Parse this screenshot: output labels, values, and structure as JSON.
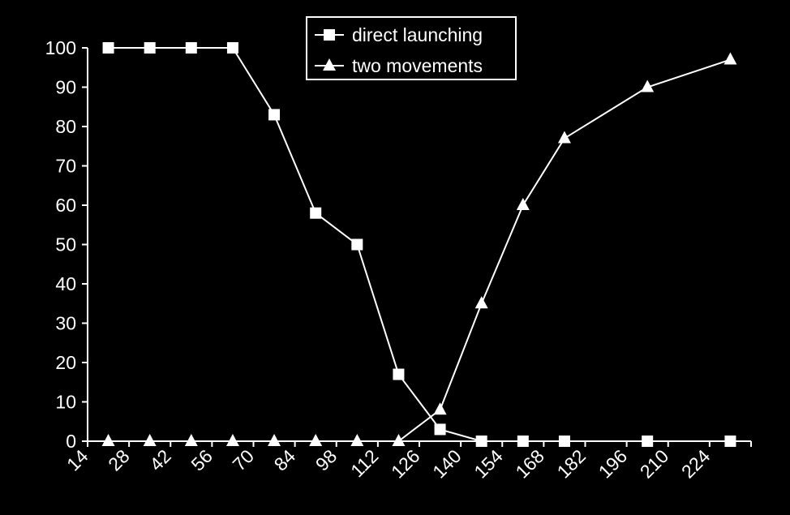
{
  "chart_data": {
    "type": "line",
    "x_ticks": [
      14,
      28,
      42,
      56,
      70,
      84,
      98,
      112,
      126,
      140,
      154,
      168,
      182,
      196,
      210,
      224
    ],
    "y_ticks": [
      0,
      10,
      20,
      30,
      40,
      50,
      60,
      70,
      80,
      90,
      100
    ],
    "xlim": [
      14,
      238
    ],
    "ylim": [
      0,
      100
    ],
    "legend_position": "top-center",
    "grid": false,
    "background": "#000000",
    "foreground": "#ffffff",
    "series": [
      {
        "name": "direct launching",
        "marker": "square",
        "x": [
          21,
          35,
          49,
          63,
          77,
          91,
          105,
          119,
          133,
          147,
          161,
          175,
          203,
          231
        ],
        "y": [
          100,
          100,
          100,
          100,
          83,
          58,
          50,
          17,
          3,
          0,
          0,
          0,
          0,
          0
        ]
      },
      {
        "name": "two movements",
        "marker": "triangle",
        "x": [
          21,
          35,
          49,
          63,
          77,
          91,
          105,
          119,
          133,
          147,
          161,
          175,
          203,
          231
        ],
        "y": [
          0,
          0,
          0,
          0,
          0,
          0,
          0,
          0,
          8,
          35,
          60,
          77,
          90,
          97
        ]
      }
    ]
  }
}
